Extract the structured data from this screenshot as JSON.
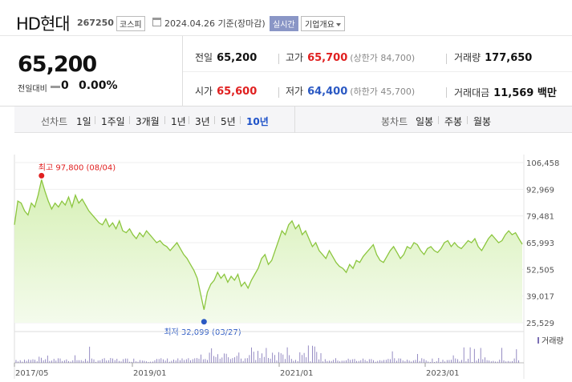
{
  "header": {
    "company_name": "HD현대",
    "stock_code": "267250",
    "market_badge": "코스피",
    "date_text": "2024.04.26  기준(장마감)",
    "live_badge": "실시간",
    "overview_button": "기업개요"
  },
  "summary": {
    "current_price": "65,200",
    "change_label": "전일대비",
    "change_value": "0",
    "change_pct": "0.00%",
    "prev_close": {
      "label": "전일",
      "value": "65,200"
    },
    "high": {
      "label": "고가",
      "value": "65,700",
      "sub": "(상한가 84,700)"
    },
    "volume": {
      "label": "거래량",
      "value": "177,650"
    },
    "open": {
      "label": "시가",
      "value": "65,600"
    },
    "low": {
      "label": "저가",
      "value": "64,400",
      "sub": "(하한가 45,700)"
    },
    "trade_amount": {
      "label": "거래대금",
      "value": "11,569 백만"
    }
  },
  "tabs": {
    "line_label": "선차트",
    "periods": [
      "1일",
      "1주일",
      "3개월",
      "1년",
      "3년",
      "5년",
      "10년"
    ],
    "active_period": "10년",
    "candle_label": "봉차트",
    "candles": [
      "일봉",
      "주봉",
      "월봉"
    ]
  },
  "colors": {
    "line": "#8cc63f",
    "fill_top": "#d6f0b5",
    "fill_bottom": "#f4fbec",
    "high_marker": "#e02020",
    "low_marker": "#2b59c3",
    "volume": "#7b6fb4"
  },
  "chart_data": {
    "type": "area",
    "y_ticks": [
      "106,458",
      "92,969",
      "79,481",
      "65,993",
      "52,505",
      "39,017",
      "25,529"
    ],
    "ylim": [
      25529,
      106458
    ],
    "x_ticks": [
      "2017/05",
      "2019/01",
      "2021/01",
      "2023/01"
    ],
    "high_annotation": "최고 97,800 (08/04)",
    "low_annotation": "최저 32,099 (03/27)",
    "volume_label": "거래량",
    "series": [
      {
        "values": [
          75000,
          87000,
          86000,
          82000,
          80000,
          86000,
          84000,
          90000,
          97800,
          92000,
          87000,
          83000,
          86000,
          84000,
          87000,
          85000,
          89000,
          84000,
          90000,
          86000,
          88000,
          85000,
          82000,
          80000,
          78000,
          76000,
          75000,
          78000,
          74000,
          76000,
          73000,
          77000,
          72000,
          71000,
          73000,
          70000,
          68000,
          71000,
          69000,
          72000,
          70000,
          68000,
          66000,
          67000,
          65000,
          64000,
          62000,
          64000,
          66000,
          63000,
          60000,
          58000,
          55000,
          52000,
          48000,
          40000,
          32099,
          41000,
          45000,
          47000,
          51000,
          48000,
          50000,
          46000,
          49000,
          47000,
          50000,
          44000,
          46000,
          43000,
          47000,
          50000,
          53000,
          58000,
          60000,
          55000,
          57000,
          62000,
          67000,
          72000,
          70000,
          75000,
          77000,
          73000,
          75000,
          70000,
          72000,
          68000,
          64000,
          66000,
          62000,
          60000,
          58000,
          62000,
          59000,
          56000,
          54000,
          53000,
          51000,
          55000,
          53000,
          57000,
          56000,
          59000,
          61000,
          63000,
          65000,
          60000,
          57000,
          56000,
          59000,
          62000,
          64000,
          61000,
          58000,
          60000,
          64000,
          63000,
          66000,
          65000,
          62000,
          60000,
          63000,
          64000,
          62000,
          61000,
          63000,
          66000,
          67000,
          64000,
          66000,
          64000,
          63000,
          65000,
          67000,
          66000,
          68000,
          64000,
          62000,
          65000,
          68000,
          70000,
          68000,
          66000,
          67000,
          70000,
          72000,
          70000,
          71000,
          68000,
          65200
        ]
      }
    ]
  }
}
